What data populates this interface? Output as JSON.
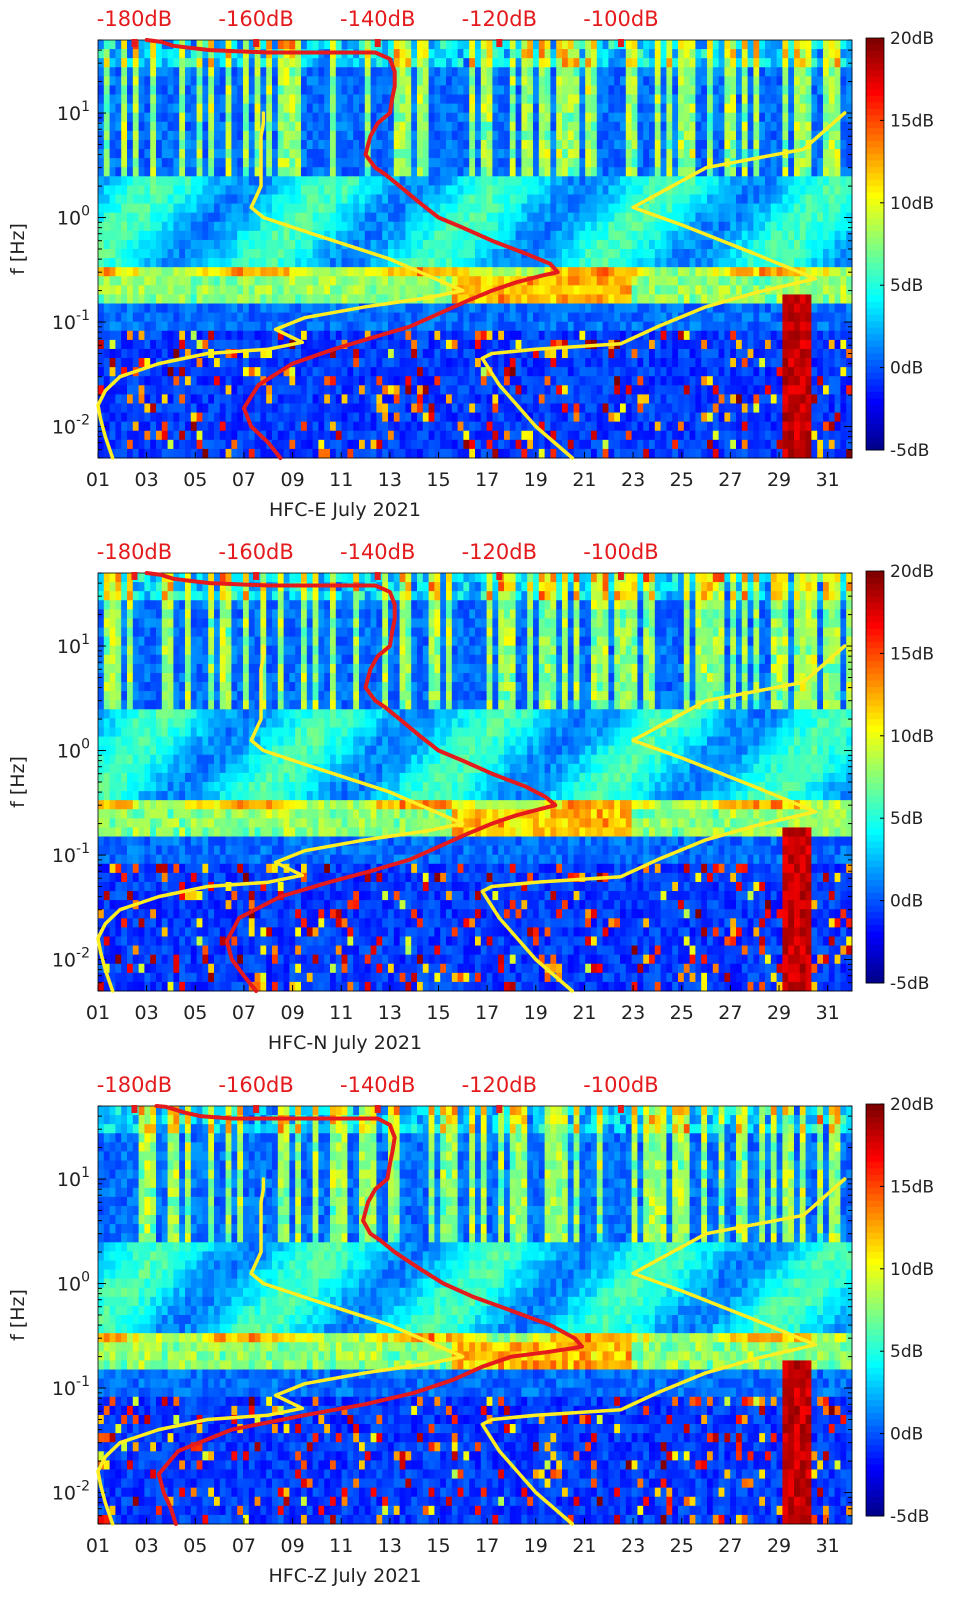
{
  "chart_data": [
    {
      "type": "heatmap",
      "title": "HFC-E July 2021",
      "xlabel": "HFC-E July 2021",
      "ylabel": "f [Hz]",
      "x_ticks": [
        "01",
        "03",
        "05",
        "07",
        "09",
        "11",
        "13",
        "15",
        "17",
        "19",
        "21",
        "23",
        "25",
        "27",
        "29",
        "31"
      ],
      "x_tick_values": [
        1,
        3,
        5,
        7,
        9,
        11,
        13,
        15,
        17,
        19,
        21,
        23,
        25,
        27,
        29,
        31
      ],
      "xlim": [
        1,
        32
      ],
      "y_ticks": [
        "10^-2",
        "10^-1",
        "10^0",
        "10^1"
      ],
      "y_tick_values": [
        0.01,
        0.1,
        1,
        10
      ],
      "ylim": [
        0.005,
        50
      ],
      "y_scale": "log",
      "top_axis_labels": [
        "-180dB",
        "-160dB",
        "-140dB",
        "-120dB",
        "-100dB"
      ],
      "top_axis_values": [
        1,
        11,
        21,
        31,
        41
      ],
      "colorbar": {
        "ticks": [
          "20dB",
          "15dB",
          "10dB",
          "5dB",
          "0dB",
          "-5dB"
        ],
        "values": [
          20,
          15,
          10,
          5,
          0,
          -5
        ],
        "range": [
          -5,
          20
        ]
      },
      "series": [
        {
          "name": "noise spectrum (red)",
          "color": "#e41a1c",
          "x": [
            8.5,
            8.0,
            7.3,
            7.0,
            7.6,
            9.0,
            10.7,
            12.2,
            13.8,
            15.0,
            16.2,
            17.2,
            18.2,
            19.3,
            19.9,
            19.6,
            18.6,
            17.2,
            16.0,
            15.0,
            14.2,
            13.4,
            12.8,
            12.4,
            12.0,
            12.2,
            12.5,
            13.0,
            13.1,
            13.2,
            13.2,
            13.0,
            12.4,
            8.0,
            5.6,
            4.8,
            4.1,
            3.6,
            3.0
          ],
          "y": [
            0.005,
            0.007,
            0.01,
            0.015,
            0.025,
            0.04,
            0.055,
            0.07,
            0.09,
            0.12,
            0.16,
            0.2,
            0.24,
            0.28,
            0.3,
            0.36,
            0.45,
            0.6,
            0.8,
            1.0,
            1.4,
            2.0,
            2.6,
            3.0,
            4.0,
            6.0,
            8.0,
            10,
            14,
            18,
            25,
            33,
            38,
            38,
            40,
            42,
            44,
            48,
            50
          ]
        },
        {
          "name": "low noise model (yellow)",
          "color": "#ffee22",
          "x": [
            1.6,
            1.3,
            1.1,
            1.0,
            1.3,
            1.9,
            3.5,
            5.5,
            8.0,
            9.4,
            8.3,
            9.5,
            12.0,
            14.5,
            16.0,
            13.0,
            9.8,
            7.8,
            7.3,
            7.7,
            7.7,
            7.7,
            7.8,
            7.8
          ],
          "y": [
            0.005,
            0.008,
            0.012,
            0.016,
            0.022,
            0.03,
            0.04,
            0.05,
            0.055,
            0.064,
            0.085,
            0.11,
            0.14,
            0.17,
            0.2,
            0.4,
            0.7,
            1.0,
            1.25,
            2.0,
            4.0,
            6.0,
            8.0,
            10.0
          ]
        },
        {
          "name": "high noise model (yellow)",
          "color": "#ffee22",
          "x": [
            20.5,
            19.0,
            17.5,
            16.8,
            17.2,
            19.0,
            22.5,
            24.0,
            26.0,
            28.0,
            30.5,
            28.0,
            25.0,
            23.0,
            26.0,
            30.0,
            31.7
          ],
          "y": [
            0.005,
            0.01,
            0.025,
            0.045,
            0.05,
            0.055,
            0.062,
            0.09,
            0.14,
            0.19,
            0.26,
            0.45,
            0.85,
            1.25,
            3.0,
            4.5,
            10.0
          ]
        }
      ]
    },
    {
      "type": "heatmap",
      "title": "HFC-N July 2021",
      "xlabel": "HFC-N July 2021",
      "ylabel": "f [Hz]",
      "x_ticks": [
        "01",
        "03",
        "05",
        "07",
        "09",
        "11",
        "13",
        "15",
        "17",
        "19",
        "21",
        "23",
        "25",
        "27",
        "29",
        "31"
      ],
      "x_tick_values": [
        1,
        3,
        5,
        7,
        9,
        11,
        13,
        15,
        17,
        19,
        21,
        23,
        25,
        27,
        29,
        31
      ],
      "xlim": [
        1,
        32
      ],
      "y_ticks": [
        "10^-2",
        "10^-1",
        "10^0",
        "10^1"
      ],
      "y_tick_values": [
        0.01,
        0.1,
        1,
        10
      ],
      "ylim": [
        0.005,
        50
      ],
      "y_scale": "log",
      "top_axis_labels": [
        "-180dB",
        "-160dB",
        "-140dB",
        "-120dB",
        "-100dB"
      ],
      "top_axis_values": [
        1,
        11,
        21,
        31,
        41
      ],
      "colorbar": {
        "ticks": [
          "20dB",
          "15dB",
          "10dB",
          "5dB",
          "0dB",
          "-5dB"
        ],
        "values": [
          20,
          15,
          10,
          5,
          0,
          -5
        ],
        "range": [
          -5,
          20
        ]
      },
      "series": [
        {
          "name": "noise spectrum (red)",
          "color": "#e41a1c",
          "x": [
            7.5,
            7.0,
            6.5,
            6.3,
            6.8,
            8.5,
            10.5,
            12.2,
            13.8,
            15.0,
            16.2,
            17.2,
            18.2,
            19.3,
            19.8,
            19.4,
            18.6,
            17.2,
            16.0,
            15.0,
            14.2,
            13.4,
            12.8,
            12.4,
            12.0,
            12.2,
            12.5,
            13.0,
            13.1,
            13.2,
            13.2,
            13.0,
            12.4,
            8.0,
            5.6,
            4.8,
            4.1,
            3.6,
            3.0
          ],
          "y": [
            0.005,
            0.007,
            0.01,
            0.015,
            0.025,
            0.04,
            0.055,
            0.07,
            0.09,
            0.12,
            0.16,
            0.2,
            0.24,
            0.28,
            0.3,
            0.36,
            0.45,
            0.6,
            0.8,
            1.0,
            1.4,
            2.0,
            2.6,
            3.0,
            4.0,
            6.0,
            8.0,
            10,
            14,
            18,
            25,
            33,
            38,
            38,
            40,
            42,
            44,
            48,
            50
          ]
        },
        {
          "name": "low noise model (yellow)",
          "color": "#ffee22",
          "x": [
            1.6,
            1.3,
            1.1,
            1.0,
            1.3,
            1.9,
            3.5,
            5.5,
            8.0,
            9.4,
            8.3,
            9.5,
            12.0,
            14.5,
            16.0,
            13.0,
            9.8,
            7.8,
            7.3,
            7.7,
            7.7,
            7.7,
            7.8,
            7.8
          ],
          "y": [
            0.005,
            0.008,
            0.012,
            0.016,
            0.022,
            0.03,
            0.04,
            0.05,
            0.055,
            0.064,
            0.085,
            0.11,
            0.14,
            0.17,
            0.2,
            0.4,
            0.7,
            1.0,
            1.25,
            2.0,
            4.0,
            6.0,
            8.0,
            10.0
          ]
        },
        {
          "name": "high noise model (yellow)",
          "color": "#ffee22",
          "x": [
            20.5,
            19.0,
            17.5,
            16.8,
            17.2,
            19.0,
            22.5,
            24.0,
            26.0,
            28.0,
            30.5,
            28.0,
            25.0,
            23.0,
            26.0,
            30.0,
            31.7
          ],
          "y": [
            0.005,
            0.01,
            0.025,
            0.045,
            0.05,
            0.055,
            0.062,
            0.09,
            0.14,
            0.19,
            0.26,
            0.45,
            0.85,
            1.25,
            3.0,
            4.5,
            10.0
          ]
        }
      ]
    },
    {
      "type": "heatmap",
      "title": "HFC-Z July 2021",
      "xlabel": "HFC-Z July 2021",
      "ylabel": "f [Hz]",
      "x_ticks": [
        "01",
        "03",
        "05",
        "07",
        "09",
        "11",
        "13",
        "15",
        "17",
        "19",
        "21",
        "23",
        "25",
        "27",
        "29",
        "31"
      ],
      "x_tick_values": [
        1,
        3,
        5,
        7,
        9,
        11,
        13,
        15,
        17,
        19,
        21,
        23,
        25,
        27,
        29,
        31
      ],
      "xlim": [
        1,
        32
      ],
      "y_ticks": [
        "10^-2",
        "10^-1",
        "10^0",
        "10^1"
      ],
      "y_tick_values": [
        0.01,
        0.1,
        1,
        10
      ],
      "ylim": [
        0.005,
        50
      ],
      "y_scale": "log",
      "top_axis_labels": [
        "-180dB",
        "-160dB",
        "-140dB",
        "-120dB",
        "-100dB"
      ],
      "top_axis_values": [
        1,
        11,
        21,
        31,
        41
      ],
      "colorbar": {
        "ticks": [
          "20dB",
          "15dB",
          "10dB",
          "5dB",
          "0dB",
          "-5dB"
        ],
        "values": [
          20,
          15,
          10,
          5,
          0,
          -5
        ],
        "range": [
          -5,
          20
        ]
      },
      "series": [
        {
          "name": "noise spectrum (red)",
          "color": "#e41a1c",
          "x": [
            4.2,
            4.0,
            3.7,
            3.5,
            4.3,
            6.5,
            9.5,
            12.0,
            14.0,
            15.6,
            16.8,
            18.0,
            19.4,
            20.5,
            20.9,
            20.6,
            19.6,
            18.0,
            16.4,
            15.2,
            14.2,
            13.2,
            12.6,
            12.2,
            11.9,
            12.1,
            12.4,
            12.9,
            13.0,
            13.1,
            13.2,
            13.0,
            12.5,
            6.5,
            5.2,
            4.6,
            4.2,
            3.8,
            3.4
          ],
          "y": [
            0.005,
            0.007,
            0.01,
            0.015,
            0.025,
            0.04,
            0.055,
            0.07,
            0.09,
            0.12,
            0.16,
            0.2,
            0.22,
            0.24,
            0.25,
            0.3,
            0.4,
            0.55,
            0.75,
            1.0,
            1.4,
            2.0,
            2.6,
            3.0,
            4.0,
            6.0,
            8.0,
            10,
            14,
            18,
            25,
            33,
            38,
            38,
            40,
            43,
            46,
            49,
            50
          ]
        },
        {
          "name": "low noise model (yellow)",
          "color": "#ffee22",
          "x": [
            1.6,
            1.3,
            1.1,
            1.0,
            1.3,
            1.9,
            3.5,
            5.5,
            8.0,
            9.4,
            8.3,
            9.5,
            12.0,
            14.5,
            16.0,
            13.0,
            9.8,
            7.8,
            7.3,
            7.7,
            7.7,
            7.7,
            7.8,
            7.8
          ],
          "y": [
            0.005,
            0.008,
            0.012,
            0.016,
            0.022,
            0.03,
            0.04,
            0.05,
            0.055,
            0.064,
            0.085,
            0.11,
            0.14,
            0.17,
            0.2,
            0.4,
            0.7,
            1.0,
            1.25,
            2.0,
            4.0,
            6.0,
            8.0,
            10.0
          ]
        },
        {
          "name": "high noise model (yellow)",
          "color": "#ffee22",
          "x": [
            20.5,
            19.0,
            17.5,
            16.8,
            17.2,
            19.0,
            22.5,
            24.0,
            26.0,
            28.0,
            30.5,
            28.0,
            25.0,
            23.0,
            26.0,
            30.0,
            31.7
          ],
          "y": [
            0.005,
            0.01,
            0.025,
            0.045,
            0.05,
            0.055,
            0.062,
            0.09,
            0.14,
            0.19,
            0.26,
            0.45,
            0.85,
            1.25,
            3.0,
            4.5,
            10.0
          ]
        }
      ]
    }
  ],
  "colors": {
    "top_label": "#e41a1c",
    "axis_text": "#222222",
    "red_line": "#e41a1c",
    "yellow_line": "#ffee22",
    "background_blue": "#1f4fd8"
  }
}
